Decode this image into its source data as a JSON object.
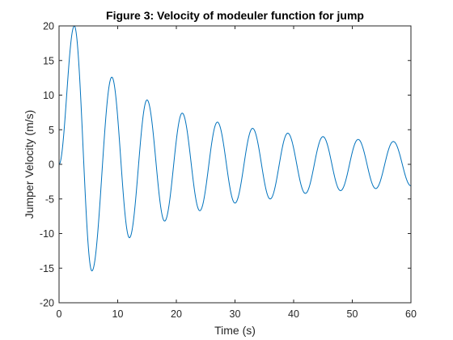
{
  "chart_data": {
    "type": "line",
    "title": "Figure 3: Velocity of modeuler function for jump",
    "xlabel": "Time (s)",
    "ylabel": "Jumper Velocity (m/s)",
    "xlim": [
      0,
      60
    ],
    "ylim": [
      -20,
      20
    ],
    "xticks": [
      0,
      10,
      20,
      30,
      40,
      50,
      60
    ],
    "yticks": [
      -20,
      -15,
      -10,
      -5,
      0,
      5,
      10,
      15,
      20
    ],
    "xtick_labels": [
      "0",
      "10",
      "20",
      "30",
      "40",
      "50",
      "60"
    ],
    "ytick_labels": [
      "-20",
      "-15",
      "-10",
      "-5",
      "0",
      "5",
      "10",
      "15",
      "20"
    ],
    "grid": false,
    "colors": {
      "line": "#0072BD",
      "axes": "#262626",
      "background": "#ffffff"
    },
    "series": [
      {
        "x": [
          0,
          2.6,
          5.6,
          9.0,
          12.0,
          15.0,
          18.0,
          21.0,
          24.0,
          27.0,
          30.0,
          33.0,
          36.0,
          39.0,
          42.0,
          45.0,
          48.0,
          51.0,
          54.0,
          57.0,
          60.0
        ],
        "y": [
          0,
          20.0,
          -15.4,
          12.6,
          -10.6,
          9.3,
          -8.2,
          7.4,
          -6.7,
          6.1,
          -5.6,
          5.2,
          -5.0,
          4.5,
          -4.2,
          4.0,
          -3.8,
          3.6,
          -3.5,
          3.3,
          -3.1
        ]
      }
    ]
  }
}
